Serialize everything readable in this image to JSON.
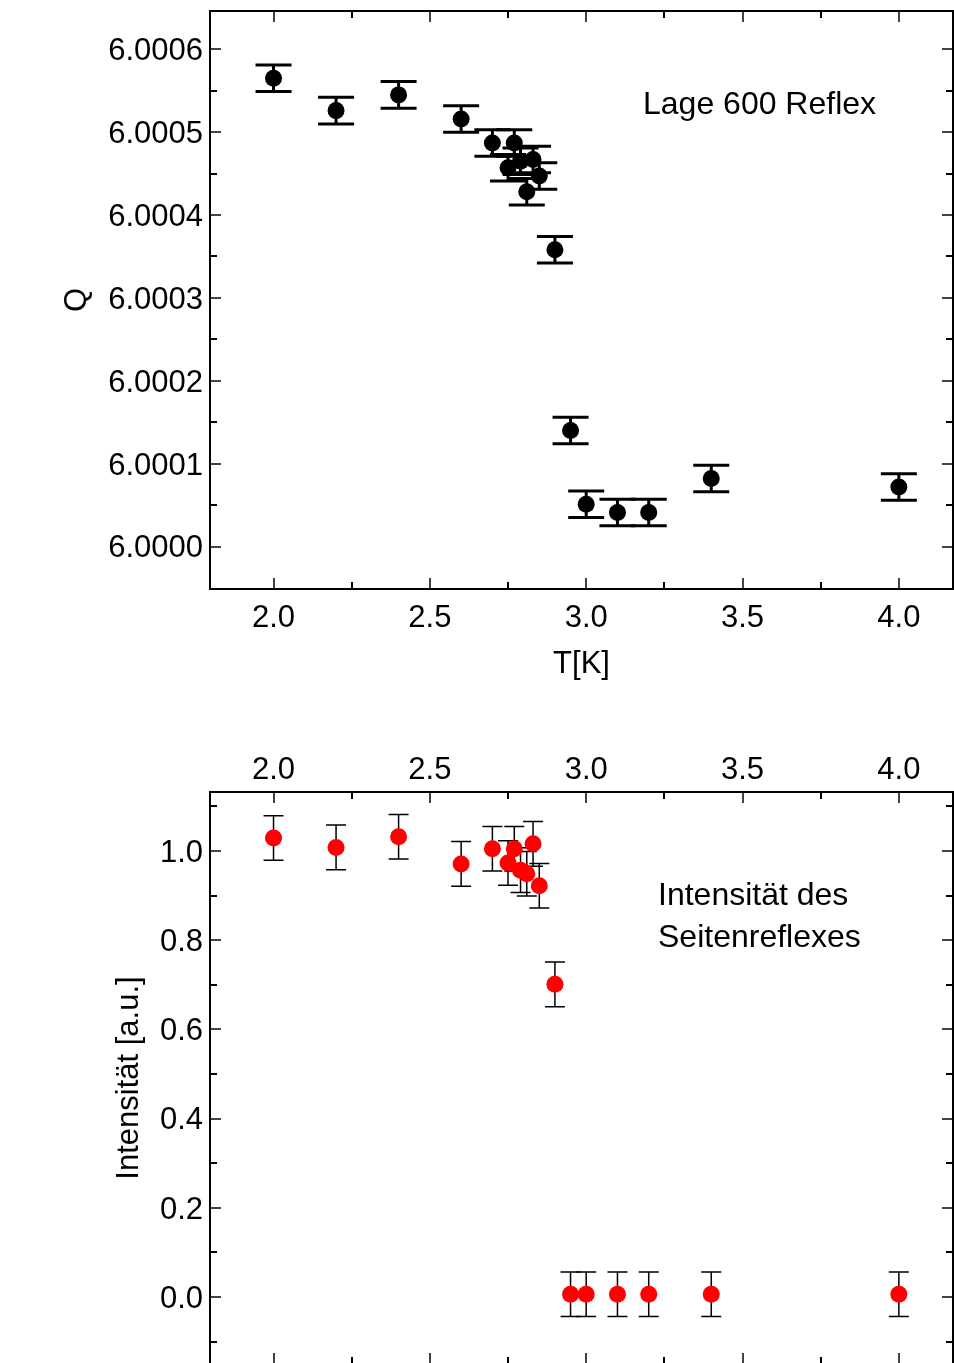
{
  "chart_data": [
    {
      "type": "scatter",
      "xlabel": "T[K]",
      "ylabel": "Q",
      "annotations": [
        "Lage 600 Reflex"
      ],
      "marker": "circle",
      "x": [
        2.0,
        2.2,
        2.4,
        2.6,
        2.7,
        2.77,
        2.75,
        2.79,
        2.83,
        2.81,
        2.85,
        2.9,
        2.95,
        3.0,
        3.1,
        3.2,
        3.4,
        4.0
      ],
      "series": [
        {
          "color": "#000000",
          "values": [
            6.000565,
            6.000526,
            6.000545,
            6.000516,
            6.000487,
            6.000487,
            6.000457,
            6.000465,
            6.000467,
            6.000428,
            6.000447,
            6.000358,
            6.00014,
            6.000051,
            6.000041,
            6.000041,
            6.000082,
            6.000072
          ],
          "errors": [
            1.6e-05,
            1.6e-05,
            1.6e-05,
            1.6e-05,
            1.6e-05,
            1.6e-05,
            1.6e-05,
            1.6e-05,
            1.6e-05,
            1.6e-05,
            1.6e-05,
            1.6e-05,
            1.6e-05,
            1.6e-05,
            1.6e-05,
            1.6e-05,
            1.6e-05,
            1.6e-05
          ]
        }
      ],
      "xlim": [
        1.8,
        4.17
      ],
      "xticks": [
        {
          "value": 2.0,
          "label": "2.0"
        },
        {
          "value": 2.5,
          "label": "2.5"
        },
        {
          "value": 3.0,
          "label": "3.0"
        },
        {
          "value": 3.5,
          "label": "3.5"
        },
        {
          "value": 4.0,
          "label": "4.0"
        }
      ],
      "ylim": [
        5.99995,
        6.000645
      ],
      "yticks": [
        {
          "value": 6.0,
          "label": "6.0000"
        },
        {
          "value": 6.0001,
          "label": "6.0001"
        },
        {
          "value": 6.0002,
          "label": "6.0002"
        },
        {
          "value": 6.0003,
          "label": "6.0003"
        },
        {
          "value": 6.0004,
          "label": "6.0004"
        },
        {
          "value": 6.0005,
          "label": "6.0005"
        },
        {
          "value": 6.0006,
          "label": "6.0006"
        }
      ]
    },
    {
      "type": "scatter",
      "ylabel": "Intensität [a.u.]",
      "annotations": [
        "Intensität des\nSeitenreflexes"
      ],
      "marker": "circle",
      "x": [
        2.0,
        2.2,
        2.4,
        2.6,
        2.7,
        2.77,
        2.75,
        2.79,
        2.83,
        2.81,
        2.85,
        2.9,
        2.95,
        3.0,
        3.1,
        3.2,
        3.4,
        4.0
      ],
      "series": [
        {
          "color": "#ff0000",
          "values": [
            1.029,
            1.008,
            1.032,
            0.971,
            1.005,
            1.005,
            0.973,
            0.957,
            1.016,
            0.949,
            0.922,
            0.701,
            0.006,
            0.006,
            0.006,
            0.006,
            0.006,
            0.006
          ],
          "errors": [
            0.05,
            0.05,
            0.05,
            0.05,
            0.05,
            0.05,
            0.05,
            0.05,
            0.05,
            0.05,
            0.05,
            0.05,
            0.05,
            0.05,
            0.05,
            0.05,
            0.05,
            0.05
          ]
        }
      ],
      "xlim": [
        1.8,
        4.17
      ],
      "xticks": [
        {
          "value": 2.0,
          "label": "2.0"
        },
        {
          "value": 2.5,
          "label": "2.5"
        },
        {
          "value": 3.0,
          "label": "3.0"
        },
        {
          "value": 3.5,
          "label": "3.5"
        },
        {
          "value": 4.0,
          "label": "4.0"
        }
      ],
      "ylim": [
        -0.148,
        1.13
      ],
      "yticks": [
        {
          "value": 0.0,
          "label": "0.0"
        },
        {
          "value": 0.2,
          "label": "0.2"
        },
        {
          "value": 0.4,
          "label": "0.4"
        },
        {
          "value": 0.6,
          "label": "0.6"
        },
        {
          "value": 0.8,
          "label": "0.8"
        },
        {
          "value": 1.0,
          "label": "1.0"
        }
      ]
    }
  ]
}
